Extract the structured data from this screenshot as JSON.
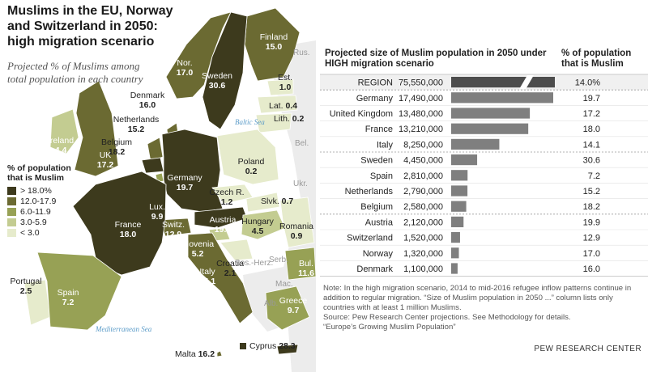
{
  "map": {
    "title": "Muslims in the EU, Norway and Switzerland in 2050: high migration scenario",
    "subtitle": "Projected % of Muslims among total population in each country",
    "legend": {
      "title": "% of population that is Muslim",
      "items": [
        {
          "label": "> 18.0%",
          "color": "#3d3a1d"
        },
        {
          "label": "12.0-17.9",
          "color": "#6b6a32"
        },
        {
          "label": "6.0-11.9",
          "color": "#97a155"
        },
        {
          "label": "3.0-5.9",
          "color": "#c3cc91"
        },
        {
          "label": "< 3.0",
          "color": "#e6ebcc"
        }
      ]
    },
    "countries": [
      {
        "name": "Finland",
        "value": "15.0",
        "color": "#6b6a32"
      },
      {
        "name": "Nor.",
        "value": "17.0",
        "color": "#6b6a32"
      },
      {
        "name": "Sweden",
        "value": "30.6",
        "color": "#3d3a1d"
      },
      {
        "name": "Est.",
        "value": "1.0",
        "color": "#e6ebcc"
      },
      {
        "name": "Denmark",
        "value": "16.0",
        "color": "#6b6a32"
      },
      {
        "name": "Netherlands",
        "value": "15.2",
        "color": "#6b6a32"
      },
      {
        "name": "Lat.",
        "value": "0.4",
        "color": "#e6ebcc"
      },
      {
        "name": "Lith.",
        "value": "0.2",
        "color": "#e6ebcc"
      },
      {
        "name": "Ireland",
        "value": "4.4",
        "color": "#c3cc91"
      },
      {
        "name": "Belgium",
        "value": "18.2",
        "color": "#3d3a1d"
      },
      {
        "name": "UK",
        "value": "17.2",
        "color": "#6b6a32"
      },
      {
        "name": "Poland",
        "value": "0.2",
        "color": "#e6ebcc"
      },
      {
        "name": "Germany",
        "value": "19.7",
        "color": "#3d3a1d"
      },
      {
        "name": "Czech R.",
        "value": "1.2",
        "color": "#e6ebcc"
      },
      {
        "name": "Slvk.",
        "value": "0.7",
        "color": "#e6ebcc"
      },
      {
        "name": "Lux.",
        "value": "9.9",
        "color": "#97a155"
      },
      {
        "name": "Austria",
        "value": "19.9",
        "color": "#3d3a1d"
      },
      {
        "name": "Hungary",
        "value": "4.5",
        "color": "#c3cc91"
      },
      {
        "name": "Romania",
        "value": "0.9",
        "color": "#e6ebcc"
      },
      {
        "name": "France",
        "value": "18.0",
        "color": "#3d3a1d"
      },
      {
        "name": "Switz.",
        "value": "12.9",
        "color": "#6b6a32"
      },
      {
        "name": "Slovenia",
        "value": "5.2",
        "color": "#c3cc91"
      },
      {
        "name": "Croatia",
        "value": "2.1",
        "color": "#e6ebcc"
      },
      {
        "name": "Italy",
        "value": "14.1",
        "color": "#6b6a32"
      },
      {
        "name": "Bul.",
        "value": "11.6",
        "color": "#97a155"
      },
      {
        "name": "Portugal",
        "value": "2.5",
        "color": "#e6ebcc"
      },
      {
        "name": "Spain",
        "value": "7.2",
        "color": "#97a155"
      },
      {
        "name": "Greece",
        "value": "9.7",
        "color": "#97a155"
      },
      {
        "name": "Cyprus",
        "value": "28.3",
        "color": "#3d3a1d"
      },
      {
        "name": "Malta",
        "value": "16.2",
        "color": "#6b6a32"
      }
    ],
    "neighbors": [
      "Rus.",
      "Bel.",
      "Ukr.",
      "Serb.",
      "Bos.-Herz.",
      "Mac.",
      "Alb."
    ],
    "seas": [
      "Baltic Sea",
      "Mediterranean Sea"
    ]
  },
  "chart_data": {
    "type": "bar",
    "title": "Projected size of Muslim population in 2050 under HIGH migration scenario",
    "pct_header": "% of population that is Muslim",
    "rows": [
      {
        "label": "REGION",
        "population": 75550000,
        "population_text": "75,550,000",
        "pct": "14.0%",
        "broken": true
      },
      {
        "label": "Germany",
        "population": 17490000,
        "population_text": "17,490,000",
        "pct": "19.7"
      },
      {
        "label": "United Kingdom",
        "population": 13480000,
        "population_text": "13,480,000",
        "pct": "17.2"
      },
      {
        "label": "France",
        "population": 13210000,
        "population_text": "13,210,000",
        "pct": "18.0"
      },
      {
        "label": "Italy",
        "population": 8250000,
        "population_text": "8,250,000",
        "pct": "14.1"
      },
      {
        "label": "Sweden",
        "population": 4450000,
        "population_text": "4,450,000",
        "pct": "30.6"
      },
      {
        "label": "Spain",
        "population": 2810000,
        "population_text": "2,810,000",
        "pct": "7.2"
      },
      {
        "label": "Netherlands",
        "population": 2790000,
        "population_text": "2,790,000",
        "pct": "15.2"
      },
      {
        "label": "Belgium",
        "population": 2580000,
        "population_text": "2,580,000",
        "pct": "18.2"
      },
      {
        "label": "Austria",
        "population": 2120000,
        "population_text": "2,120,000",
        "pct": "19.9"
      },
      {
        "label": "Switzerland",
        "population": 1520000,
        "population_text": "1,520,000",
        "pct": "12.9"
      },
      {
        "label": "Norway",
        "population": 1320000,
        "population_text": "1,320,000",
        "pct": "17.0"
      },
      {
        "label": "Denmark",
        "population": 1100000,
        "population_text": "1,100,000",
        "pct": "16.0"
      }
    ],
    "bar_color": "#7f7f7f",
    "region_bar_color": "#4d4d4d"
  },
  "note": "Note: In the high migration scenario, 2014 to mid-2016 refugee inflow patterns continue in addition to regular migration. “Size of Muslim population in 2050 ...” column lists only countries with at least 1 million Muslims.",
  "source": "Source: Pew Research Center projections. See Methodology for details.",
  "report": "“Europe’s Growing Muslim Population”",
  "credit": "PEW RESEARCH CENTER"
}
